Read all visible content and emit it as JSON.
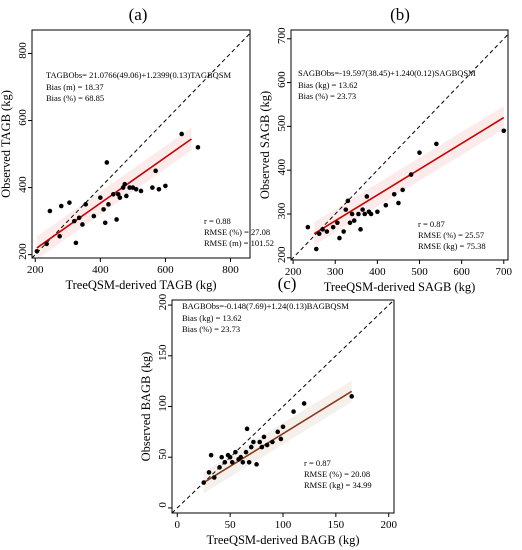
{
  "chart_data": [
    {
      "type": "scatter",
      "panel_label": "(a)",
      "xlabel": "TreeQSM-derived TAGB (kg)",
      "ylabel": "Observed TAGB (kg)",
      "xlim": [
        190,
        860
      ],
      "ylim": [
        190,
        870
      ],
      "xticks": [
        200,
        400,
        600,
        800
      ],
      "yticks": [
        200,
        400,
        600,
        800
      ],
      "equation": "TAGBObs= 21.0766(49.06)+1.2399(0.13)TAGBQSM",
      "bias_lines": [
        "Bias (m) = 18.37",
        "Bias (%) = 68.85"
      ],
      "stat_lines": [
        "r = 0.88",
        "RMSE (%) = 27.08",
        "RMSE (m) = 101.52"
      ],
      "fit_line": {
        "x": [
          205,
          680
        ],
        "y": [
          220,
          545
        ],
        "color": "#cc0000"
      },
      "one_to_one": true,
      "points": [
        [
          205,
          210
        ],
        [
          235,
          232
        ],
        [
          245,
          330
        ],
        [
          275,
          255
        ],
        [
          280,
          345
        ],
        [
          305,
          355
        ],
        [
          320,
          300
        ],
        [
          325,
          235
        ],
        [
          335,
          310
        ],
        [
          345,
          290
        ],
        [
          355,
          350
        ],
        [
          380,
          315
        ],
        [
          400,
          370
        ],
        [
          410,
          335
        ],
        [
          415,
          295
        ],
        [
          420,
          475
        ],
        [
          425,
          350
        ],
        [
          440,
          380
        ],
        [
          450,
          305
        ],
        [
          455,
          380
        ],
        [
          460,
          370
        ],
        [
          470,
          400
        ],
        [
          475,
          410
        ],
        [
          480,
          375
        ],
        [
          490,
          400
        ],
        [
          500,
          400
        ],
        [
          510,
          395
        ],
        [
          525,
          390
        ],
        [
          560,
          400
        ],
        [
          570,
          450
        ],
        [
          580,
          395
        ],
        [
          600,
          405
        ],
        [
          650,
          560
        ],
        [
          700,
          520
        ]
      ]
    },
    {
      "type": "scatter",
      "panel_label": "(b)",
      "xlabel": "TreeQSM-derived SAGB (kg)",
      "ylabel": "Observed SAGB (kg)",
      "xlim": [
        195,
        710
      ],
      "ylim": [
        195,
        720
      ],
      "xticks": [
        200,
        300,
        400,
        500,
        600,
        700
      ],
      "yticks": [
        200,
        300,
        400,
        500,
        600,
        700
      ],
      "equation": "SAGBObs=-19.597(38.45)+1.240(0.12)SAGBQSM",
      "bias_lines": [
        "Bias (kg) = 13.62",
        "Bias (%) = 23.73"
      ],
      "stat_lines": [
        "r = 0.87",
        "RMSE (%) = 25.57",
        "RMSE (kg) = 75.38"
      ],
      "fit_line": {
        "x": [
          250,
          700
        ],
        "y": [
          255,
          520
        ],
        "color": "#cc0000"
      },
      "one_to_one": true,
      "points": [
        [
          235,
          270
        ],
        [
          255,
          220
        ],
        [
          262,
          255
        ],
        [
          270,
          265
        ],
        [
          280,
          260
        ],
        [
          295,
          270
        ],
        [
          305,
          280
        ],
        [
          310,
          245
        ],
        [
          320,
          260
        ],
        [
          325,
          310
        ],
        [
          330,
          330
        ],
        [
          335,
          280
        ],
        [
          340,
          300
        ],
        [
          345,
          285
        ],
        [
          355,
          300
        ],
        [
          360,
          265
        ],
        [
          365,
          310
        ],
        [
          370,
          300
        ],
        [
          375,
          340
        ],
        [
          380,
          305
        ],
        [
          385,
          300
        ],
        [
          400,
          305
        ],
        [
          420,
          320
        ],
        [
          440,
          345
        ],
        [
          450,
          325
        ],
        [
          460,
          355
        ],
        [
          480,
          390
        ],
        [
          500,
          440
        ],
        [
          540,
          460
        ],
        [
          700,
          490
        ]
      ]
    },
    {
      "type": "scatter",
      "panel_label": "(c)",
      "xlabel": "TreeQSM-derived BAGB (kg)",
      "ylabel": "Observed BAGB (kg)",
      "xlim": [
        -5,
        205
      ],
      "ylim": [
        -5,
        205
      ],
      "xticks": [
        0,
        50,
        100,
        150,
        200
      ],
      "yticks": [
        0,
        50,
        100,
        150,
        200
      ],
      "equation": "BAGBObs=-0.148(7.69)+1.24(0.13)BAGBQSM",
      "bias_lines": [
        "Bias (kg) = 13.62",
        "Bias (%) = 23.73"
      ],
      "stat_lines": [
        "r = 0.87",
        "RMSE (%) = 20.08",
        "RMSE (kg) = 34.99"
      ],
      "fit_line": {
        "x": [
          25,
          165
        ],
        "y": [
          25,
          115
        ],
        "color": "#8b3a1a"
      },
      "one_to_one": true,
      "points": [
        [
          25,
          25
        ],
        [
          30,
          35
        ],
        [
          32,
          52
        ],
        [
          35,
          30
        ],
        [
          40,
          40
        ],
        [
          42,
          50
        ],
        [
          45,
          45
        ],
        [
          48,
          52
        ],
        [
          50,
          50
        ],
        [
          52,
          45
        ],
        [
          55,
          55
        ],
        [
          58,
          48
        ],
        [
          60,
          50
        ],
        [
          62,
          45
        ],
        [
          65,
          55
        ],
        [
          66,
          78
        ],
        [
          68,
          45
        ],
        [
          70,
          60
        ],
        [
          72,
          65
        ],
        [
          75,
          43
        ],
        [
          78,
          65
        ],
        [
          80,
          60
        ],
        [
          82,
          70
        ],
        [
          85,
          62
        ],
        [
          90,
          65
        ],
        [
          95,
          75
        ],
        [
          98,
          68
        ],
        [
          100,
          80
        ],
        [
          110,
          95
        ],
        [
          120,
          103
        ],
        [
          165,
          110
        ]
      ]
    }
  ]
}
